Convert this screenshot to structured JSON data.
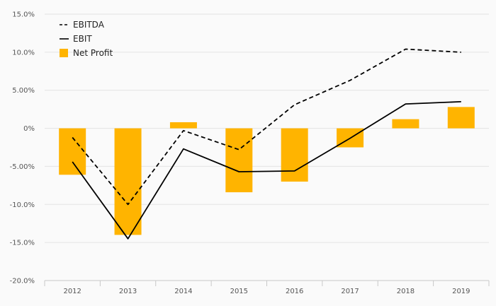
{
  "chart_data": {
    "type": "bar",
    "categories": [
      "2012",
      "2013",
      "2014",
      "2015",
      "2016",
      "2017",
      "2018",
      "2019"
    ],
    "series": [
      {
        "name": "EBITDA",
        "type": "line",
        "style": "dashed",
        "color": "#000000",
        "values": [
          -1.2,
          -10.0,
          -0.3,
          -2.8,
          3.1,
          6.3,
          10.4,
          10.0
        ]
      },
      {
        "name": "EBIT",
        "type": "line",
        "style": "solid",
        "color": "#000000",
        "values": [
          -4.4,
          -14.5,
          -2.7,
          -5.7,
          -5.6,
          -1.3,
          3.2,
          3.5
        ]
      },
      {
        "name": "Net Profit",
        "type": "bar",
        "color": "#FFB400",
        "values": [
          -6.1,
          -14.0,
          0.8,
          -8.4,
          -7.0,
          -2.5,
          1.2,
          2.8
        ]
      }
    ],
    "yticks": [
      "15.0%",
      "10.0%",
      "5.00%",
      "0%",
      "-5.00%",
      "-10.0%",
      "-15.0%",
      "-20.0%"
    ],
    "ylim": [
      -20,
      15
    ],
    "title": "",
    "xlabel": "",
    "ylabel": "",
    "grid": true,
    "legend": "top-left"
  }
}
